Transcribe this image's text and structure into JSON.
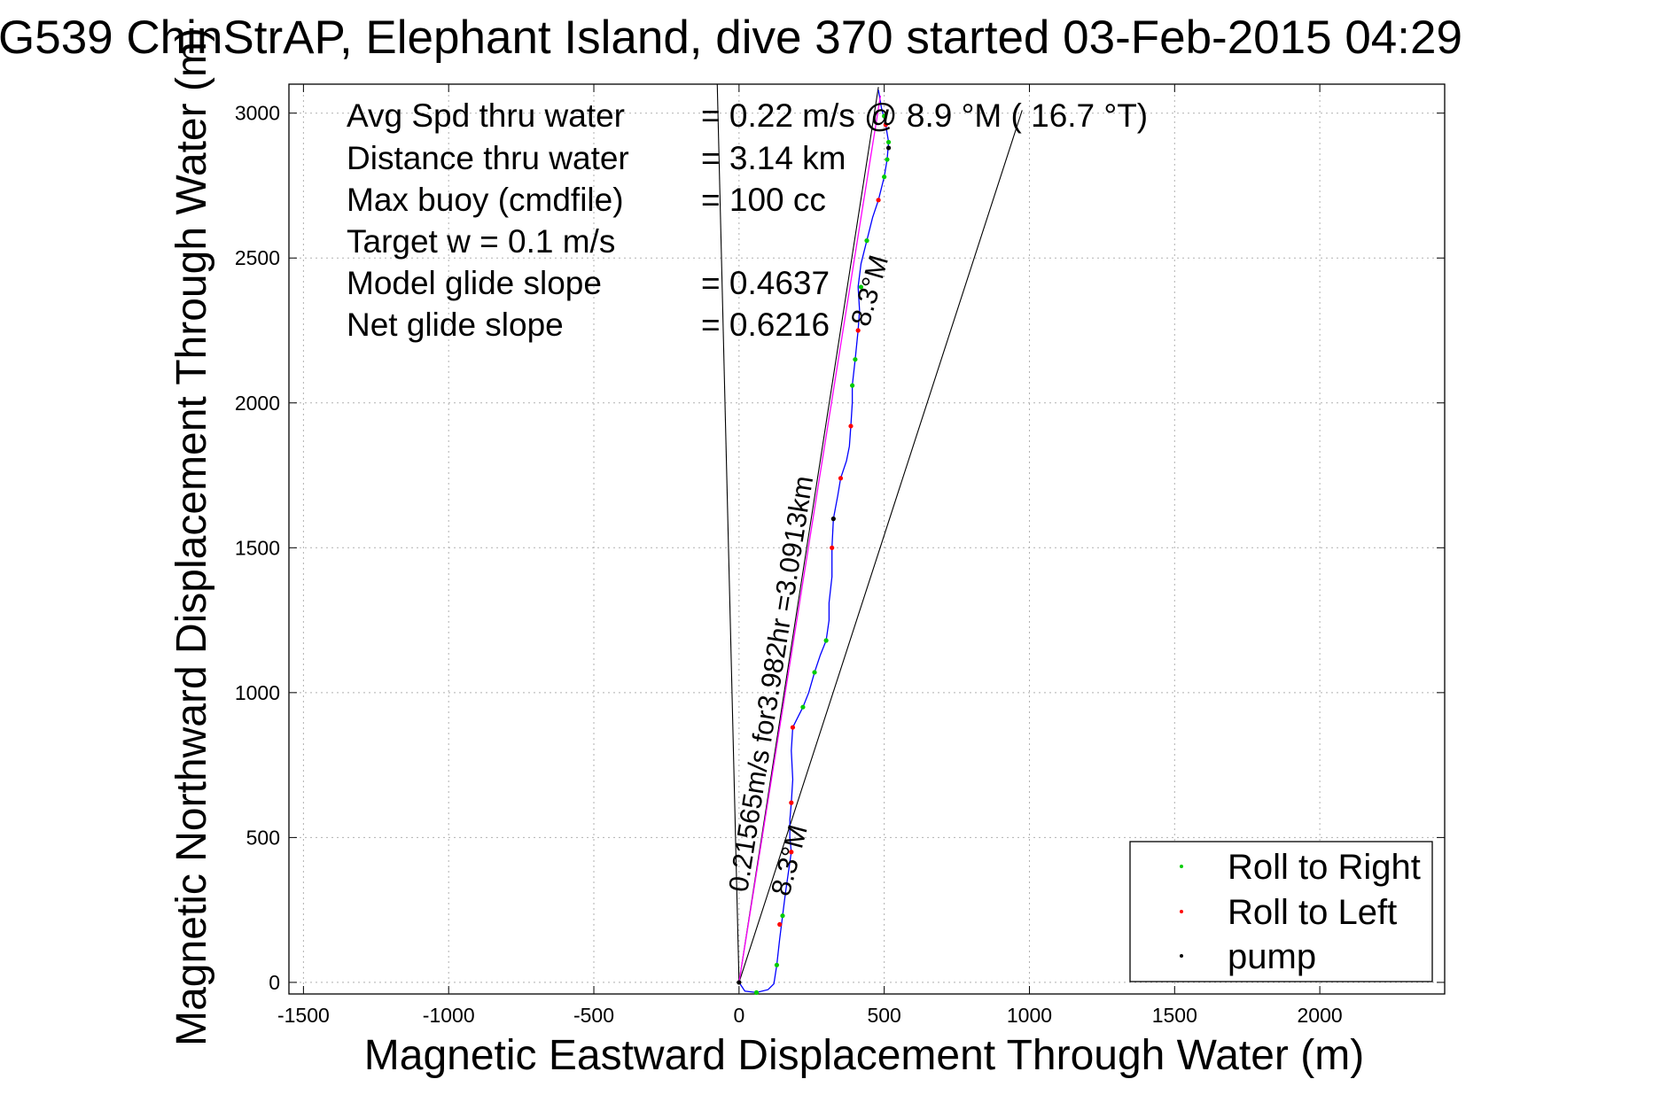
{
  "chart_data": {
    "type": "line",
    "title": "G539 ChinStrAP, Elephant Island, dive 370 started 03-Feb-2015 04:29",
    "xlabel": "Magnetic Eastward Displacement Through Water (m)",
    "ylabel": "Magnetic Northward Displacement Through Water (m)",
    "xlim": [
      -1550,
      2430
    ],
    "ylim": [
      -40,
      3100
    ],
    "xticks": [
      -1500,
      -1000,
      -500,
      0,
      500,
      1000,
      1500,
      2000
    ],
    "yticks": [
      0,
      500,
      1000,
      1500,
      2000,
      2500,
      3000
    ],
    "xtick_labels": [
      "-1500",
      "-1000",
      "-500",
      "0",
      "500",
      "1000",
      "1500",
      "2000"
    ],
    "ytick_labels": [
      "0",
      "500",
      "1000",
      "1500",
      "2000",
      "2500",
      "3000"
    ],
    "grid": true,
    "legend_position": "bottom-right",
    "info_lines": [
      {
        "label": "Avg Spd thru water",
        "value": "=  0.22 m/s @   8.9 °M ( 16.7 °T)"
      },
      {
        "label": "Distance thru water",
        "value": "=  3.14 km"
      },
      {
        "label": "Max buoy (cmdfile)",
        "value": "= 100 cc"
      },
      {
        "label": "Target w    = 0.1 m/s",
        "value": ""
      },
      {
        "label": "Model glide slope",
        "value": "= 0.4637"
      },
      {
        "label": "Net glide slope",
        "value": "= 0.6216"
      }
    ],
    "annotations": {
      "track_heading_top": "8.3°M",
      "track_heading_bottom": "8.3°M",
      "speed_text": "0.21565m/s for3.982hr =3.0913km"
    },
    "series": [
      {
        "name": "",
        "role": "track",
        "color": "#0000ff",
        "points": [
          [
            0,
            0
          ],
          [
            20,
            -30
          ],
          [
            60,
            -35
          ],
          [
            100,
            -25
          ],
          [
            120,
            -5
          ],
          [
            130,
            60
          ],
          [
            140,
            150
          ],
          [
            150,
            230
          ],
          [
            160,
            310
          ],
          [
            170,
            380
          ],
          [
            180,
            450
          ],
          [
            175,
            500
          ],
          [
            175,
            560
          ],
          [
            180,
            620
          ],
          [
            185,
            700
          ],
          [
            180,
            800
          ],
          [
            185,
            880
          ],
          [
            220,
            950
          ],
          [
            240,
            1000
          ],
          [
            260,
            1070
          ],
          [
            280,
            1130
          ],
          [
            300,
            1180
          ],
          [
            310,
            1250
          ],
          [
            310,
            1310
          ],
          [
            320,
            1400
          ],
          [
            320,
            1500
          ],
          [
            325,
            1600
          ],
          [
            340,
            1680
          ],
          [
            350,
            1740
          ],
          [
            370,
            1800
          ],
          [
            380,
            1850
          ],
          [
            385,
            1920
          ],
          [
            390,
            2000
          ],
          [
            390,
            2060
          ],
          [
            400,
            2150
          ],
          [
            410,
            2250
          ],
          [
            415,
            2320
          ],
          [
            410,
            2400
          ],
          [
            420,
            2480
          ],
          [
            430,
            2520
          ],
          [
            440,
            2560
          ],
          [
            450,
            2600
          ],
          [
            460,
            2640
          ],
          [
            480,
            2700
          ],
          [
            500,
            2780
          ],
          [
            510,
            2840
          ],
          [
            515,
            2900
          ],
          [
            505,
            2960
          ],
          [
            490,
            3020
          ],
          [
            480,
            3080
          ]
        ]
      },
      {
        "name": "",
        "role": "net-heading-line",
        "color": "#ff00ff",
        "points": [
          [
            0,
            0
          ],
          [
            487,
            3060
          ]
        ]
      },
      {
        "name": "Roll to Right",
        "role": "marker",
        "color": "#00cc00",
        "points": [
          [
            60,
            -35
          ],
          [
            130,
            60
          ],
          [
            150,
            230
          ],
          [
            220,
            950
          ],
          [
            260,
            1070
          ],
          [
            300,
            1180
          ],
          [
            390,
            2060
          ],
          [
            400,
            2150
          ],
          [
            420,
            2400
          ],
          [
            440,
            2560
          ],
          [
            500,
            2780
          ],
          [
            510,
            2840
          ],
          [
            515,
            2900
          ],
          [
            500,
            2990
          ]
        ]
      },
      {
        "name": "Roll to Left",
        "role": "marker",
        "color": "#ff0000",
        "points": [
          [
            140,
            200
          ],
          [
            180,
            450
          ],
          [
            180,
            620
          ],
          [
            185,
            880
          ],
          [
            320,
            1500
          ],
          [
            350,
            1740
          ],
          [
            385,
            1920
          ],
          [
            410,
            2250
          ],
          [
            480,
            2700
          ],
          [
            505,
            2960
          ]
        ]
      },
      {
        "name": "pump",
        "role": "marker",
        "color": "#000000",
        "points": [
          [
            0,
            0
          ],
          [
            325,
            1600
          ],
          [
            515,
            2880
          ]
        ]
      }
    ],
    "reference_lines": [
      {
        "color": "#000000",
        "points": [
          [
            0,
            0
          ],
          [
            -75,
            3100
          ]
        ]
      },
      {
        "color": "#000000",
        "points": [
          [
            0,
            0
          ],
          [
            975,
            3010
          ]
        ]
      },
      {
        "color": "#000000",
        "points": [
          [
            0,
            0
          ],
          [
            480,
            3090
          ]
        ]
      }
    ]
  }
}
